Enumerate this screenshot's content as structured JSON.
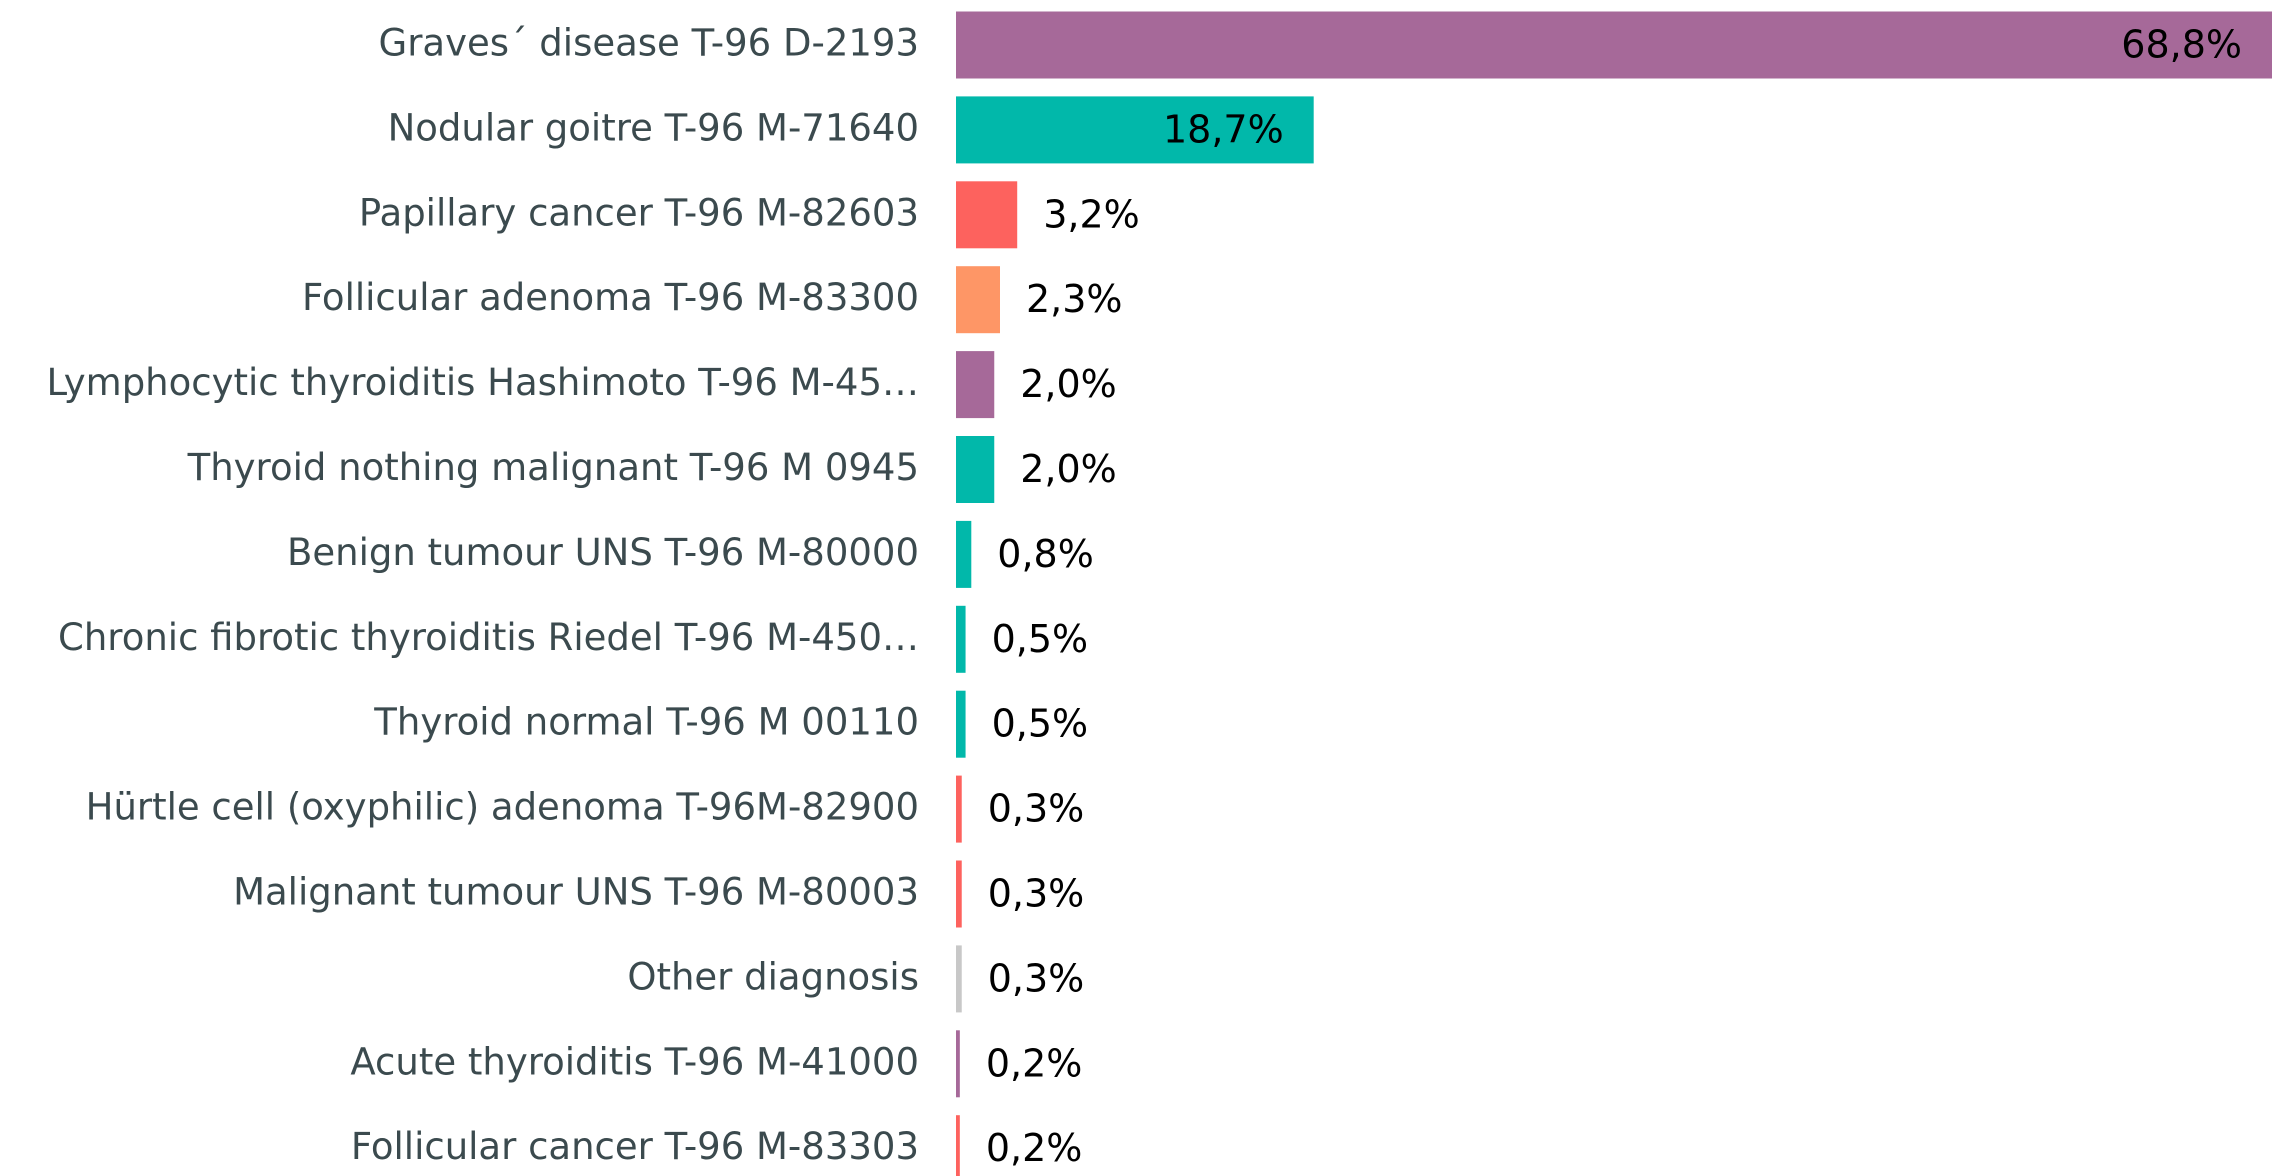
{
  "chart_data": {
    "type": "bar",
    "orientation": "horizontal",
    "categories": [
      "Graves´ disease T-96 D-2193",
      "Nodular goitre T-96 M-71640",
      "Papillary cancer T-96 M-82603",
      "Follicular adenoma T-96 M-83300",
      "Lymphocytic thyroiditis Hashimoto T-96 M-45…",
      "Thyroid nothing malignant T-96 M 0945",
      "Benign tumour UNS T-96 M-80000",
      "Chronic fibrotic thyroiditis Riedel T-96 M-450…",
      "Thyroid normal T-96 M 00110",
      "Hürtle cell (oxyphilic) adenoma T-96M-82900",
      "Malignant tumour UNS T-96 M-80003",
      "Other diagnosis",
      "Acute thyroiditis T-96 M-41000",
      "Follicular cancer T-96 M-83303"
    ],
    "values": [
      68.8,
      18.7,
      3.2,
      2.3,
      2.0,
      2.0,
      0.8,
      0.5,
      0.5,
      0.3,
      0.3,
      0.3,
      0.2,
      0.2
    ],
    "value_labels": [
      "68,8%",
      "18,7%",
      "3,2%",
      "2,3%",
      "2,0%",
      "2,0%",
      "0,8%",
      "0,5%",
      "0,5%",
      "0,3%",
      "0,3%",
      "0,3%",
      "0,2%",
      "0,2%"
    ],
    "colors": [
      "#a66999",
      "#01b8aa",
      "#fd625e",
      "#fe9666",
      "#a66999",
      "#01b8aa",
      "#01b8aa",
      "#01b8aa",
      "#01b8aa",
      "#fd625e",
      "#fd625e",
      "#c8c8c8",
      "#a66999",
      "#fd625e"
    ]
  }
}
